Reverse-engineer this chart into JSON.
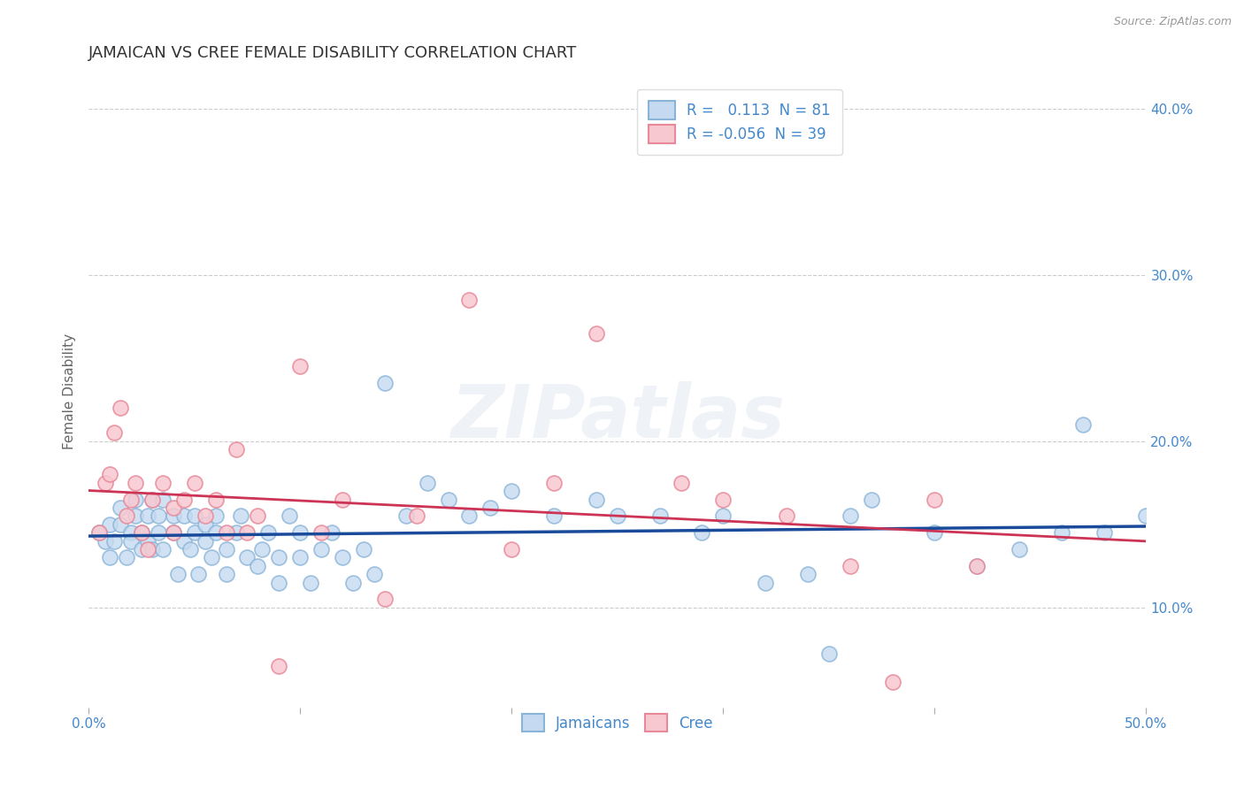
{
  "title": "JAMAICAN VS CREE FEMALE DISABILITY CORRELATION CHART",
  "source": "Source: ZipAtlas.com",
  "ylabel": "Female Disability",
  "xlim": [
    0.0,
    0.5
  ],
  "ylim": [
    0.04,
    0.42
  ],
  "xticks": [
    0.0,
    0.1,
    0.2,
    0.3,
    0.4,
    0.5
  ],
  "xtick_labels": [
    "0.0%",
    "",
    "",
    "",
    "",
    "50.0%"
  ],
  "yticks_right": [
    0.1,
    0.2,
    0.3,
    0.4
  ],
  "ytick_right_labels": [
    "10.0%",
    "20.0%",
    "30.0%",
    "40.0%"
  ],
  "R_jamaican": 0.113,
  "N_jamaican": 81,
  "R_cree": -0.056,
  "N_cree": 39,
  "jamaican_color_face": "#c5daf0",
  "jamaican_color_edge": "#89b4d8",
  "cree_color_face": "#f8c8d0",
  "cree_color_edge": "#e88898",
  "trend_jamaican_color": "#1a4a9a",
  "trend_cree_color": "#cc3355",
  "background_color": "#ffffff",
  "grid_color": "#cccccc",
  "title_color": "#333333",
  "axis_label_color": "#4488cc",
  "legend_label_color": "#4488cc",
  "watermark": "ZIPatlas",
  "jamaican_x": [
    0.005,
    0.008,
    0.01,
    0.01,
    0.012,
    0.015,
    0.015,
    0.018,
    0.02,
    0.02,
    0.022,
    0.022,
    0.025,
    0.025,
    0.028,
    0.028,
    0.03,
    0.03,
    0.033,
    0.033,
    0.035,
    0.035,
    0.04,
    0.04,
    0.042,
    0.045,
    0.045,
    0.048,
    0.05,
    0.05,
    0.052,
    0.055,
    0.055,
    0.058,
    0.06,
    0.06,
    0.065,
    0.065,
    0.07,
    0.072,
    0.075,
    0.08,
    0.082,
    0.085,
    0.09,
    0.09,
    0.095,
    0.1,
    0.1,
    0.105,
    0.11,
    0.115,
    0.12,
    0.125,
    0.13,
    0.135,
    0.14,
    0.15,
    0.16,
    0.17,
    0.18,
    0.19,
    0.2,
    0.22,
    0.24,
    0.25,
    0.27,
    0.29,
    0.3,
    0.32,
    0.34,
    0.36,
    0.37,
    0.4,
    0.42,
    0.44,
    0.46,
    0.47,
    0.48,
    0.5,
    0.35
  ],
  "jamaican_y": [
    0.145,
    0.14,
    0.15,
    0.13,
    0.14,
    0.15,
    0.16,
    0.13,
    0.145,
    0.14,
    0.155,
    0.165,
    0.135,
    0.145,
    0.14,
    0.155,
    0.165,
    0.135,
    0.145,
    0.155,
    0.165,
    0.135,
    0.145,
    0.155,
    0.12,
    0.14,
    0.155,
    0.135,
    0.145,
    0.155,
    0.12,
    0.14,
    0.15,
    0.13,
    0.145,
    0.155,
    0.12,
    0.135,
    0.145,
    0.155,
    0.13,
    0.125,
    0.135,
    0.145,
    0.115,
    0.13,
    0.155,
    0.145,
    0.13,
    0.115,
    0.135,
    0.145,
    0.13,
    0.115,
    0.135,
    0.12,
    0.235,
    0.155,
    0.175,
    0.165,
    0.155,
    0.16,
    0.17,
    0.155,
    0.165,
    0.155,
    0.155,
    0.145,
    0.155,
    0.115,
    0.12,
    0.155,
    0.165,
    0.145,
    0.125,
    0.135,
    0.145,
    0.21,
    0.145,
    0.155,
    0.072
  ],
  "cree_x": [
    0.005,
    0.008,
    0.01,
    0.012,
    0.015,
    0.018,
    0.02,
    0.022,
    0.025,
    0.028,
    0.03,
    0.035,
    0.04,
    0.04,
    0.045,
    0.05,
    0.055,
    0.06,
    0.065,
    0.07,
    0.075,
    0.08,
    0.09,
    0.1,
    0.11,
    0.12,
    0.14,
    0.155,
    0.18,
    0.2,
    0.22,
    0.24,
    0.28,
    0.3,
    0.33,
    0.36,
    0.38,
    0.4,
    0.42
  ],
  "cree_y": [
    0.145,
    0.175,
    0.18,
    0.205,
    0.22,
    0.155,
    0.165,
    0.175,
    0.145,
    0.135,
    0.165,
    0.175,
    0.16,
    0.145,
    0.165,
    0.175,
    0.155,
    0.165,
    0.145,
    0.195,
    0.145,
    0.155,
    0.065,
    0.245,
    0.145,
    0.165,
    0.105,
    0.155,
    0.285,
    0.135,
    0.175,
    0.265,
    0.175,
    0.165,
    0.155,
    0.125,
    0.055,
    0.165,
    0.125
  ]
}
